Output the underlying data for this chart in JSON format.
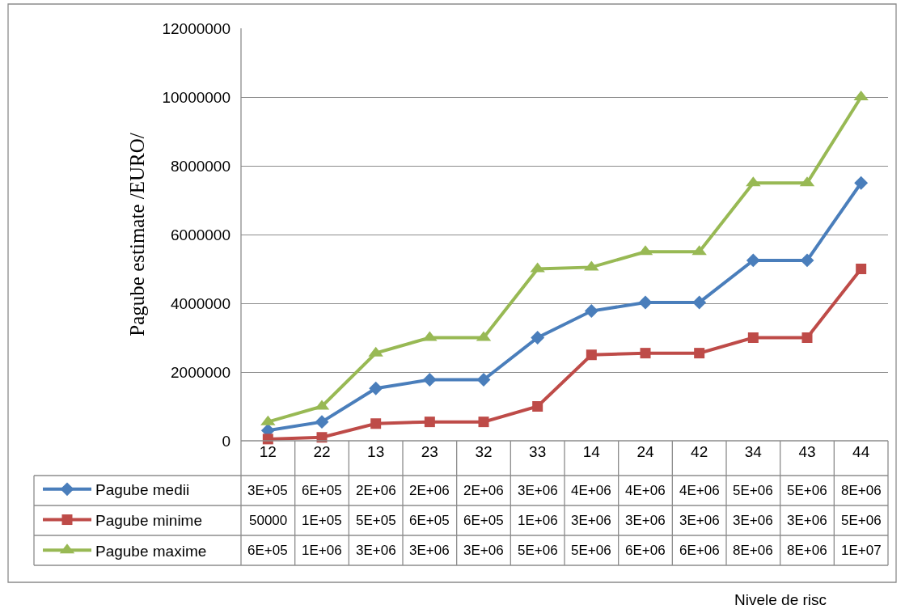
{
  "chart_data": {
    "type": "line",
    "annotations": [
      "Nivele de risc"
    ],
    "ylabel": "Pagube estimate /EURO/",
    "categories": [
      "12",
      "22",
      "13",
      "23",
      "32",
      "33",
      "14",
      "24",
      "42",
      "34",
      "43",
      "44"
    ],
    "ylim": [
      0,
      12000000
    ],
    "yticks": [
      0,
      2000000,
      4000000,
      6000000,
      8000000,
      10000000,
      12000000
    ],
    "grid": "y",
    "legend": "bottom left",
    "series": [
      {
        "name": "Pagube medii",
        "color": "#4a7ebb",
        "marker": "diamond",
        "values": [
          300000,
          550000,
          1525000,
          1775000,
          1775000,
          3000000,
          3775000,
          4025000,
          4025000,
          5250000,
          5250000,
          7500000
        ],
        "value_labels": [
          "3E+05",
          "6E+05",
          "2E+06",
          "2E+06",
          "2E+06",
          "3E+06",
          "4E+06",
          "4E+06",
          "4E+06",
          "5E+06",
          "5E+06",
          "8E+06"
        ]
      },
      {
        "name": "Pagube minime",
        "color": "#be4b48",
        "marker": "square",
        "values": [
          50000,
          100000,
          500000,
          550000,
          550000,
          1000000,
          2500000,
          2550000,
          2550000,
          3000000,
          3000000,
          5000000
        ],
        "value_labels": [
          "50000",
          "1E+05",
          "5E+05",
          "6E+05",
          "6E+05",
          "1E+06",
          "3E+06",
          "3E+06",
          "3E+06",
          "3E+06",
          "3E+06",
          "5E+06"
        ]
      },
      {
        "name": "Pagube maxime",
        "color": "#98b954",
        "marker": "triangle",
        "values": [
          550000,
          1000000,
          2550000,
          3000000,
          3000000,
          5000000,
          5050000,
          5500000,
          5500000,
          7500000,
          7500000,
          10000000
        ],
        "value_labels": [
          "6E+05",
          "1E+06",
          "3E+06",
          "3E+06",
          "3E+06",
          "5E+06",
          "5E+06",
          "6E+06",
          "6E+06",
          "8E+06",
          "8E+06",
          "1E+07"
        ]
      }
    ]
  }
}
